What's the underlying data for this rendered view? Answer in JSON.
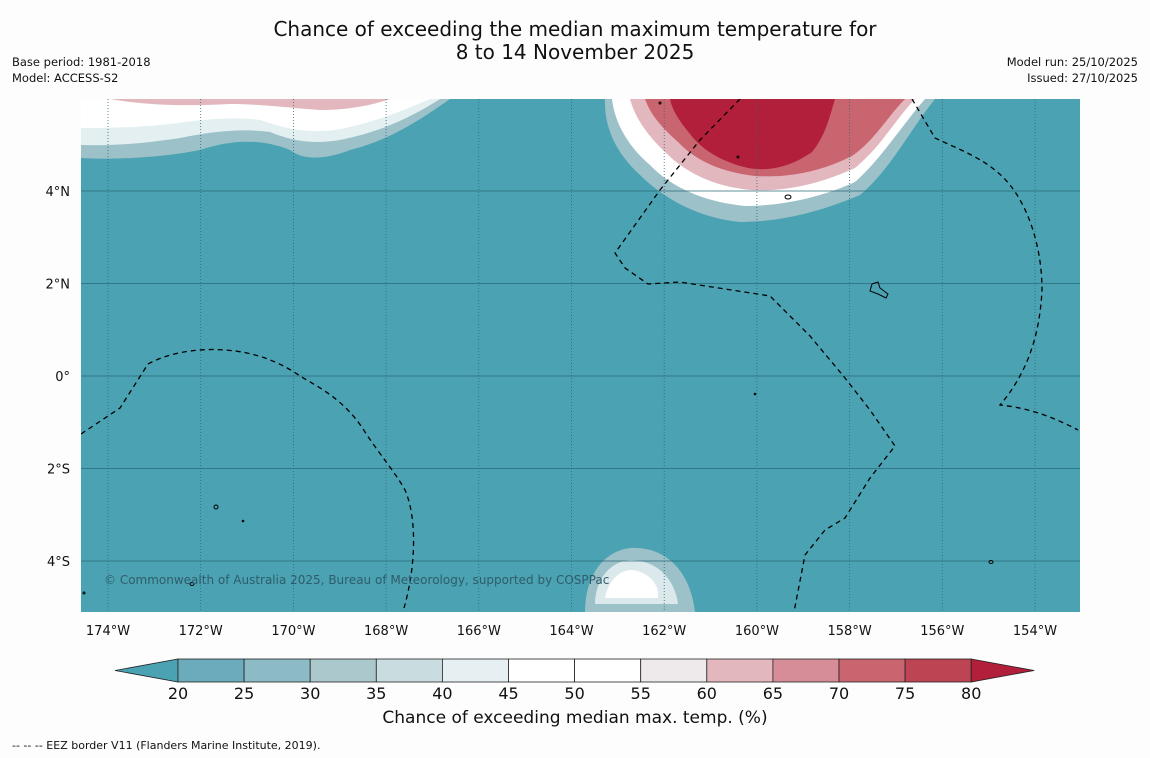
{
  "title": {
    "line1": "Chance of exceeding the median maximum temperature for",
    "line2": "8 to 14 November 2025"
  },
  "meta_left": {
    "base_period": "Base period: 1981-2018",
    "model": "Model: ACCESS-S2"
  },
  "meta_right": {
    "model_run": "Model run: 25/10/2025",
    "issued": "Issued: 27/10/2025"
  },
  "map": {
    "lat_labels": [
      "4°N",
      "2°N",
      "0°",
      "2°S",
      "4°S"
    ],
    "lon_labels": [
      "174°W",
      "172°W",
      "170°W",
      "168°W",
      "166°W",
      "164°W",
      "162°W",
      "160°W",
      "158°W",
      "156°W",
      "154°W"
    ],
    "copyright": "© Commonwealth of Australia 2025, Bureau of Meteorology, supported by COSPPac",
    "background_color": "#4aa2b3"
  },
  "colorbar": {
    "ticks": [
      "20",
      "25",
      "30",
      "35",
      "40",
      "45",
      "50",
      "55",
      "60",
      "65",
      "70",
      "75",
      "80"
    ],
    "colors": [
      "#4aa2b3",
      "#6babbb",
      "#8cbac5",
      "#abc8cc",
      "#c9dcdf",
      "#e6f0f2",
      "#ffffff",
      "#ffffff",
      "#eeeaeb",
      "#e2b8be",
      "#d68d97",
      "#c9656f",
      "#bd4553",
      "#b21f3a"
    ],
    "title": "Chance of exceeding median max. temp. (%)"
  },
  "footnote": "--  --  -- EEZ border V11 (Flanders Marine Institute, 2019)."
}
